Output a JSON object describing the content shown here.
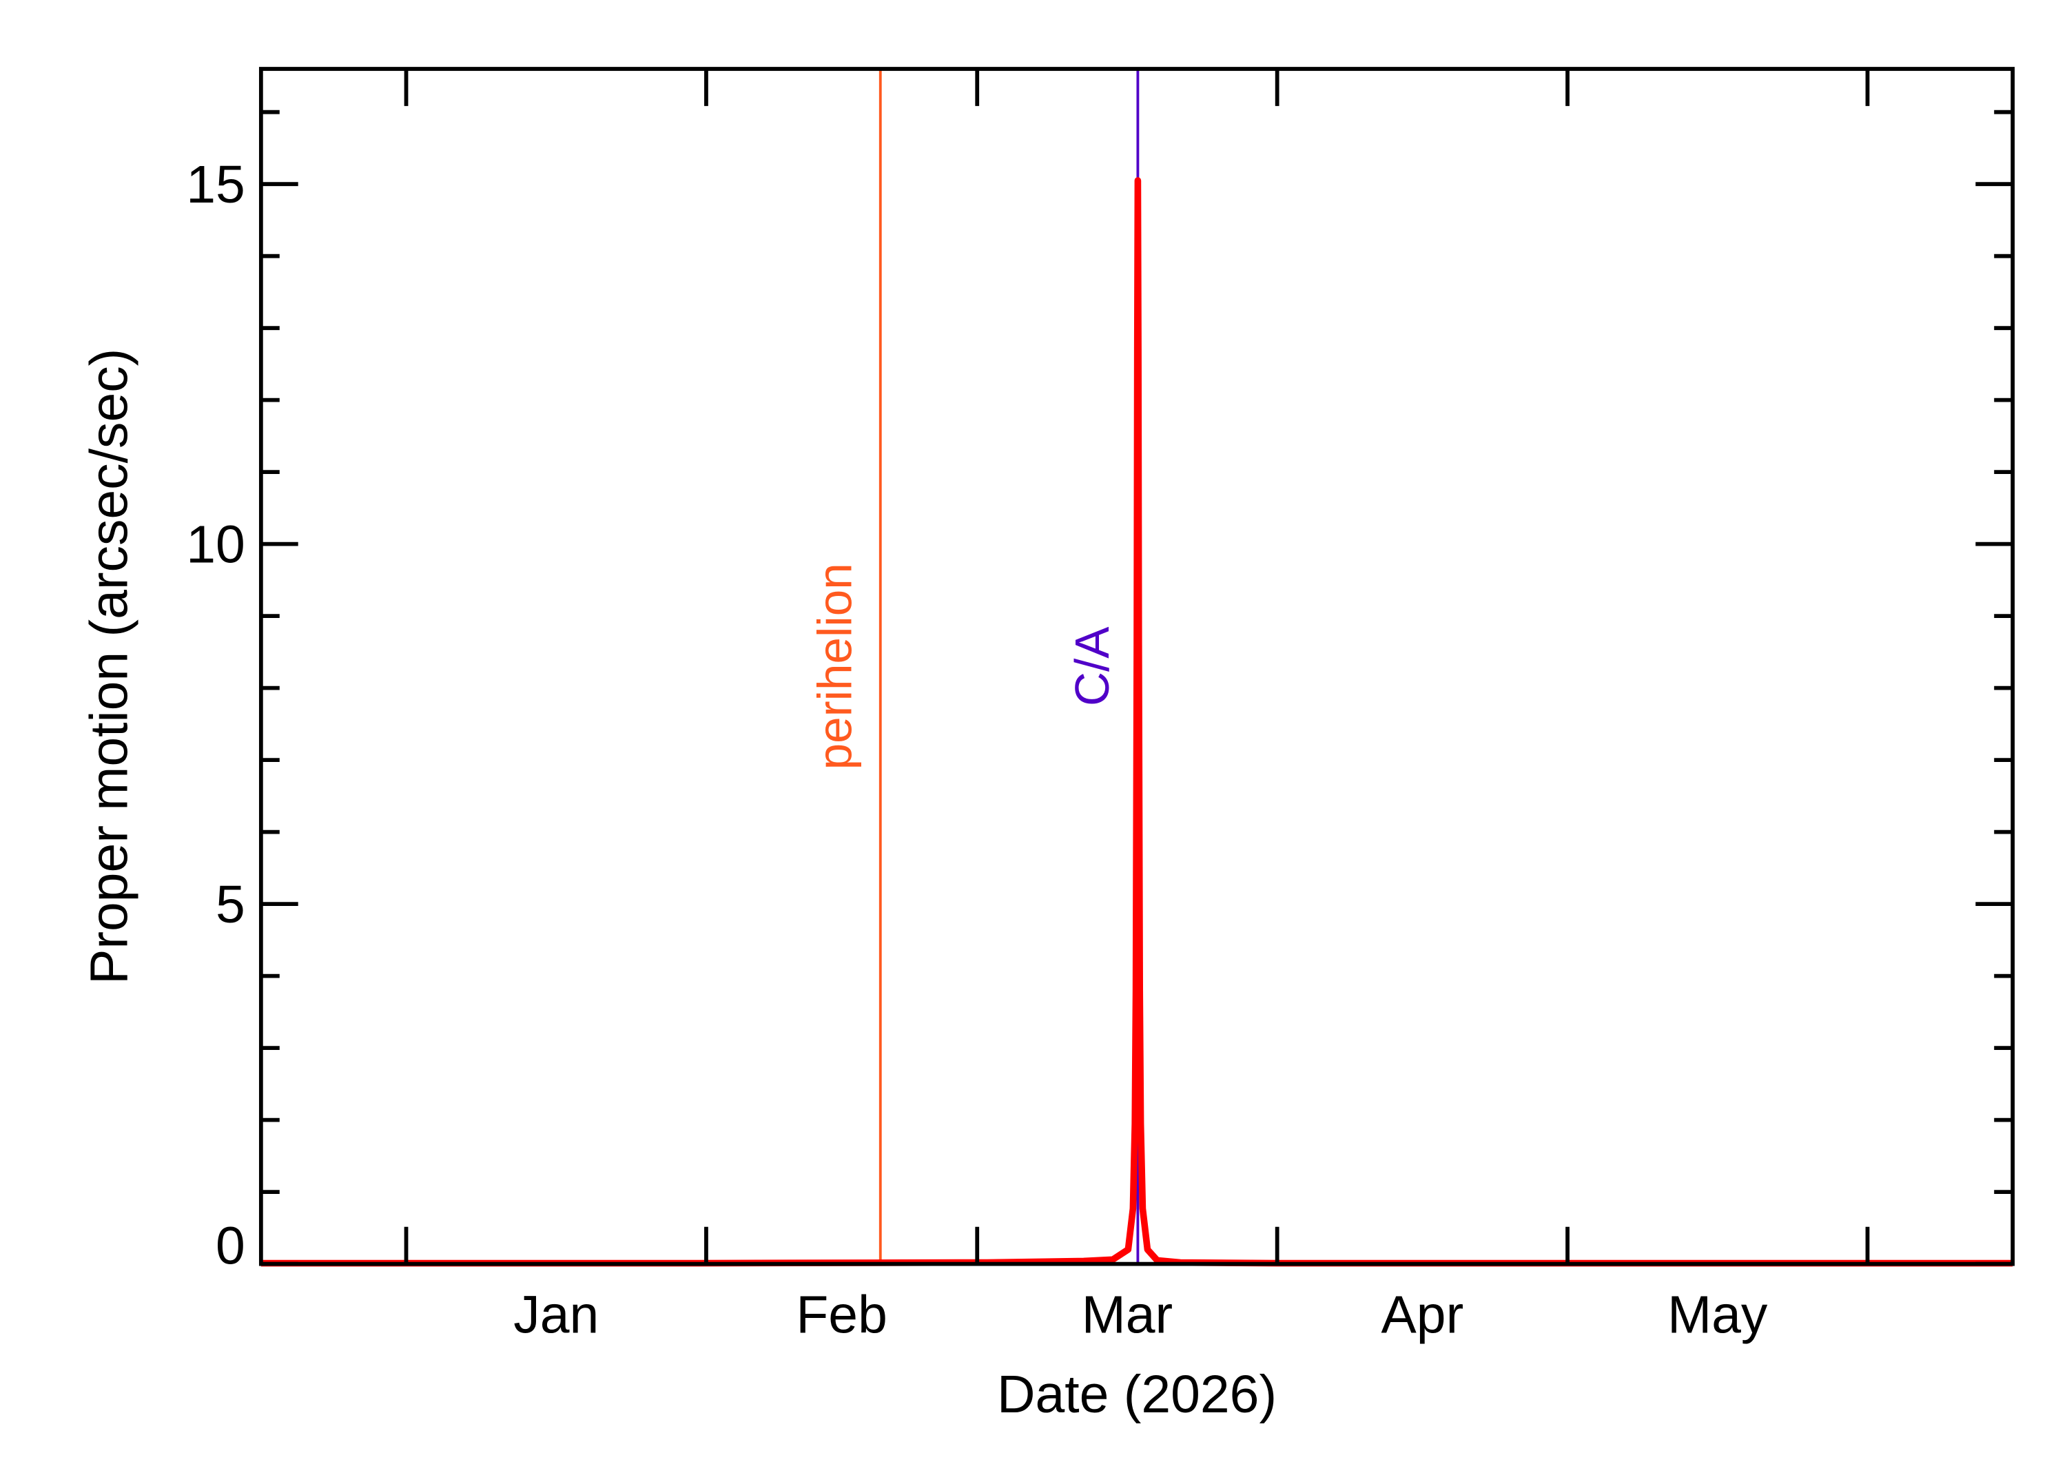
{
  "chart_data": {
    "type": "line",
    "xlabel": "Date (2026)",
    "ylabel": "Proper motion (arcsec/sec)",
    "xlim": [
      -15,
      166
    ],
    "ylim": [
      0,
      16.6
    ],
    "yticks": [
      0,
      5,
      10,
      15
    ],
    "xticks": [
      {
        "value": 15.5,
        "label": "Jan"
      },
      {
        "value": 45,
        "label": "Feb"
      },
      {
        "value": 74.5,
        "label": "Mar"
      },
      {
        "value": 105,
        "label": "Apr"
      },
      {
        "value": 135.5,
        "label": "May"
      }
    ],
    "month_starts": [
      0,
      31,
      59,
      90,
      120,
      151
    ],
    "markers": [
      {
        "label": "perihelion",
        "x": 49,
        "color": "#ff5a1f"
      },
      {
        "label": "C/A",
        "x": 75.6,
        "color": "#5000c8"
      }
    ],
    "series": [
      {
        "color": "#ff0000",
        "x": [
          -15,
          0,
          30,
          60,
          70,
          73,
          74.6,
          75.1,
          75.3,
          75.4,
          75.5,
          75.55,
          75.6,
          75.65,
          75.7,
          75.8,
          75.9,
          76.1,
          76.6,
          77.6,
          80,
          90,
          120,
          166
        ],
        "values": [
          0.01,
          0.01,
          0.01,
          0.02,
          0.04,
          0.06,
          0.2,
          0.77,
          1.95,
          3.8,
          8.6,
          12.7,
          15.05,
          12.7,
          8.6,
          3.8,
          1.95,
          0.77,
          0.2,
          0.05,
          0.02,
          0.01,
          0.01,
          0.01
        ]
      }
    ]
  }
}
